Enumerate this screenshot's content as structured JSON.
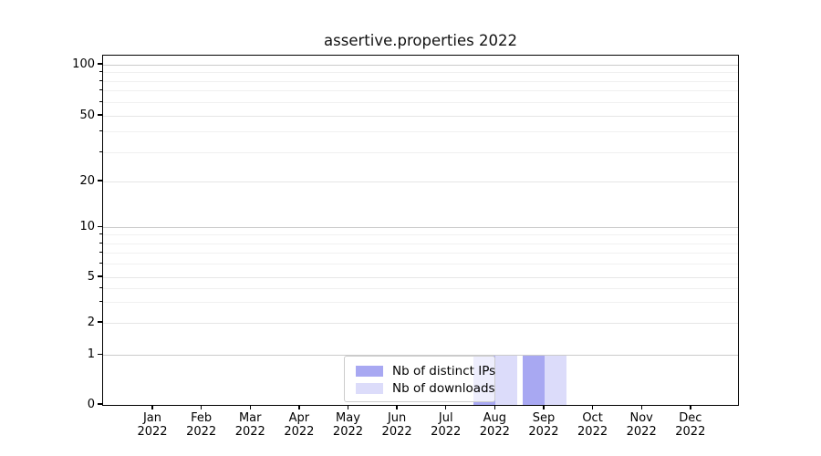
{
  "figure": {
    "background_color": "#ffffff",
    "text_color": "#000000"
  },
  "chart_data": {
    "type": "bar",
    "title": "assertive.properties 2022",
    "categories": [
      {
        "month": "Jan",
        "year": "2022"
      },
      {
        "month": "Feb",
        "year": "2022"
      },
      {
        "month": "Mar",
        "year": "2022"
      },
      {
        "month": "Apr",
        "year": "2022"
      },
      {
        "month": "May",
        "year": "2022"
      },
      {
        "month": "Jun",
        "year": "2022"
      },
      {
        "month": "Jul",
        "year": "2022"
      },
      {
        "month": "Aug",
        "year": "2022"
      },
      {
        "month": "Sep",
        "year": "2022"
      },
      {
        "month": "Oct",
        "year": "2022"
      },
      {
        "month": "Nov",
        "year": "2022"
      },
      {
        "month": "Dec",
        "year": "2022"
      }
    ],
    "series": [
      {
        "name": "Nb of distinct IPs",
        "color": "#a8a8f2",
        "values": [
          0,
          0,
          0,
          0,
          0,
          0,
          0,
          1,
          1,
          0,
          0,
          0
        ]
      },
      {
        "name": "Nb of downloads",
        "color": "#dcdcfa",
        "values": [
          0,
          0,
          0,
          0,
          0,
          0,
          0,
          1,
          1,
          0,
          0,
          0
        ]
      }
    ],
    "y_axis": {
      "scale": "symlog",
      "labeled_ticks": [
        0,
        1,
        2,
        5,
        10,
        20,
        50,
        100
      ],
      "major_gridline_values": [
        1,
        10,
        100
      ],
      "minor_gridline_values": [
        2,
        3,
        4,
        5,
        6,
        7,
        8,
        9,
        20,
        30,
        40,
        50,
        60,
        70,
        80,
        90
      ],
      "ylim_top_value": 120
    },
    "x_axis": {
      "tick_count": 12
    },
    "legend": {
      "position": "bottom-center",
      "entries": [
        "Nb of distinct IPs",
        "Nb of downloads"
      ]
    },
    "grid": true
  }
}
